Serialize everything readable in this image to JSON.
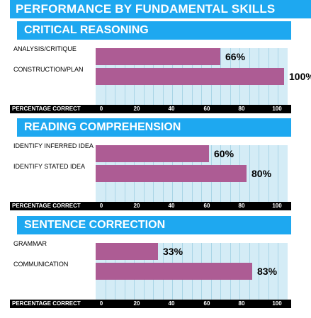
{
  "main_title": "PERFORMANCE BY FUNDAMENTAL SKILLS",
  "axis_label": "PERCENTAGE CORRECT",
  "chart_data": [
    {
      "type": "bar",
      "orientation": "horizontal",
      "title": "CRITICAL REASONING",
      "categories": [
        "ANALYSIS/CRITIQUE",
        "CONSTRUCTION/PLAN"
      ],
      "values": [
        66,
        100
      ],
      "value_labels": [
        "66%",
        "100%"
      ],
      "xlabel": "PERCENTAGE CORRECT",
      "xlim": [
        0,
        100
      ],
      "ticks": [
        "0",
        "20",
        "40",
        "60",
        "80",
        "100"
      ],
      "grid": true
    },
    {
      "type": "bar",
      "orientation": "horizontal",
      "title": "READING COMPREHENSION",
      "categories": [
        "IDENTIFY INFERRED IDEA",
        "IDENTIFY STATED IDEA"
      ],
      "values": [
        60,
        80
      ],
      "value_labels": [
        "60%",
        "80%"
      ],
      "xlabel": "PERCENTAGE CORRECT",
      "xlim": [
        0,
        100
      ],
      "ticks": [
        "0",
        "20",
        "40",
        "60",
        "80",
        "100"
      ],
      "grid": true
    },
    {
      "type": "bar",
      "orientation": "horizontal",
      "title": "SENTENCE CORRECTION",
      "categories": [
        "GRAMMAR",
        "COMMUNICATION"
      ],
      "values": [
        33,
        83
      ],
      "value_labels": [
        "33%",
        "83%"
      ],
      "xlabel": "PERCENTAGE CORRECT",
      "xlim": [
        0,
        100
      ],
      "ticks": [
        "0",
        "20",
        "40",
        "60",
        "80",
        "100"
      ],
      "grid": true
    }
  ],
  "colors": {
    "header": "#1ea8f0",
    "bar": "#ad5c94",
    "plot_bg": "#d4ecf6",
    "grid": "#a9d5e6"
  }
}
